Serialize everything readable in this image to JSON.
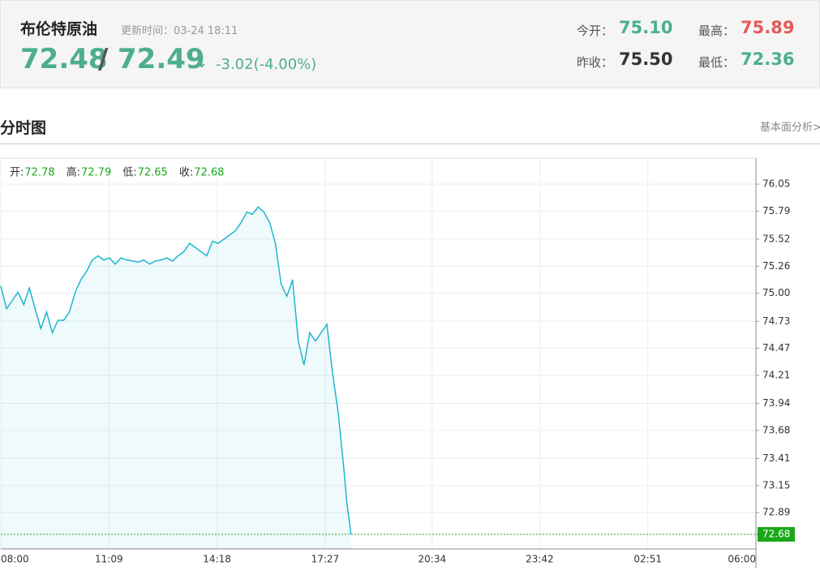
{
  "header": {
    "title": "布伦特原油",
    "update_label": "更新时间：03-24 18:11",
    "bid": "72.48",
    "separator": "/",
    "ask": "72.49",
    "arrow": "↓",
    "change": "-3.02(-4.00%)",
    "stats": [
      {
        "label": "今开：",
        "value": "75.10"
      },
      {
        "label": "最高：",
        "value": "75.89"
      },
      {
        "label": "昨收：",
        "value": "75.50"
      },
      {
        "label": "最低：",
        "value": "72.36"
      }
    ]
  },
  "section": {
    "title": "分时图",
    "link": "基本面分析>"
  },
  "chart_data": {
    "type": "line",
    "ohlc": [
      {
        "label": "开:",
        "value": "72.78"
      },
      {
        "label": "高:",
        "value": "72.79"
      },
      {
        "label": "低:",
        "value": "72.65"
      },
      {
        "label": "收:",
        "value": "72.68"
      }
    ],
    "x": [
      0,
      10,
      20,
      30,
      40,
      50,
      60,
      70,
      80,
      90,
      100,
      110,
      120,
      130,
      140,
      150,
      160,
      170,
      180,
      190,
      200,
      210,
      220,
      230,
      240,
      250,
      260,
      270,
      280,
      290,
      300,
      310,
      320,
      330,
      340,
      350,
      360,
      370,
      380,
      390,
      400,
      410,
      420,
      430,
      440,
      450,
      460,
      470,
      480,
      490,
      500,
      510,
      520,
      530,
      540,
      550,
      560,
      570,
      580,
      590,
      600,
      605,
      610,
      612
    ],
    "series": [
      {
        "name": "布伦特原油",
        "color": "#1fb5d0",
        "values": [
          75.07,
          74.85,
          74.93,
          75.01,
          74.89,
          75.05,
          74.85,
          74.66,
          74.82,
          74.62,
          74.74,
          74.74,
          74.82,
          75.01,
          75.13,
          75.21,
          75.32,
          75.36,
          75.32,
          75.34,
          75.28,
          75.34,
          75.32,
          75.31,
          75.3,
          75.32,
          75.28,
          75.31,
          75.32,
          75.34,
          75.31,
          75.36,
          75.4,
          75.48,
          75.44,
          75.4,
          75.36,
          75.5,
          75.48,
          75.52,
          75.56,
          75.6,
          75.68,
          75.78,
          75.76,
          75.83,
          75.78,
          75.68,
          75.48,
          75.09,
          74.97,
          75.13,
          74.54,
          74.31,
          74.62,
          74.54,
          74.62,
          74.7,
          74.23,
          73.84,
          73.29,
          72.98,
          72.78,
          72.68
        ]
      }
    ],
    "xlim": [
      0,
      1320
    ],
    "xticks": [
      {
        "value": 0,
        "label": "08:00"
      },
      {
        "value": 189,
        "label": "11:09"
      },
      {
        "value": 378,
        "label": "14:18"
      },
      {
        "value": 567,
        "label": "17:27"
      },
      {
        "value": 754,
        "label": "20:34"
      },
      {
        "value": 942,
        "label": "23:42"
      },
      {
        "value": 1131,
        "label": "02:51"
      },
      {
        "value": 1320,
        "label": "06:00"
      }
    ],
    "ylim": [
      72.54,
      76.3
    ],
    "yticks": [
      76.05,
      75.79,
      75.52,
      75.26,
      {
        "value": 75,
        "label": "75.00"
      },
      74.73,
      74.47,
      74.21,
      73.94,
      73.68,
      73.41,
      73.15,
      72.89
    ],
    "grid": true,
    "last_color": "#1aa81a"
  }
}
